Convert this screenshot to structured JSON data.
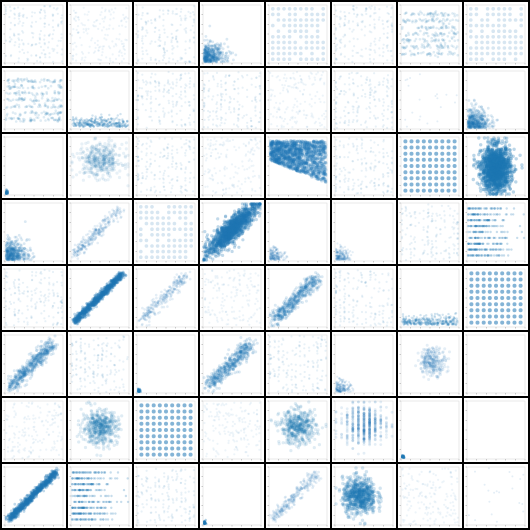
{
  "chart_data": {
    "type": "scatter",
    "layout": "scatter-matrix",
    "rows": 8,
    "cols": 8,
    "title": "",
    "xlabel": "",
    "ylabel": "",
    "grid": false,
    "legend": "none",
    "colors": {
      "point": "#1f77b4",
      "background": "#ffffff",
      "border": "#000000"
    },
    "axis_range": [
      0,
      1
    ],
    "panels": [
      [
        "faint-vertical",
        "faint-uniform",
        "faint-vertical",
        "corner-blob",
        "dot-grid",
        "faint-vertical",
        "horizontal-bands",
        "dot-grid"
      ],
      [
        "horizontal-bands",
        "bottom-band",
        "faint-vertical",
        "faint-vertical",
        "faint-uniform",
        "faint-vertical",
        "sparse",
        "corner-blob"
      ],
      [
        "corner-point",
        "mid-cloud",
        "faint-vertical",
        "faint-uniform",
        "dense-wedge",
        "faint-vertical",
        "dot-grid-strong",
        "dense-ellipse"
      ],
      [
        "corner-blob",
        "diagonal-faint",
        "dot-grid",
        "dense-diagonal",
        "corner-faint",
        "corner-faint",
        "faint-vertical",
        "horizontal-lines"
      ],
      [
        "faint-vertical",
        "dense-diagonal-thin",
        "diagonal-faint",
        "faint-uniform",
        "diagonal-medium",
        "faint-vertical",
        "bottom-band",
        "dot-grid-strong"
      ],
      [
        "diagonal-medium",
        "faint-vertical",
        "corner-point",
        "diagonal-medium",
        "faint-vertical",
        "corner-faint",
        "central-cloud",
        "empty"
      ],
      [
        "faint-uniform",
        "round-cloud",
        "dot-grid-strong",
        "faint-uniform",
        "round-cloud",
        "grid-cloud",
        "corner-point",
        "empty"
      ],
      [
        "dense-diagonal-thin",
        "horizontal-lines",
        "faint-vertical",
        "corner-point",
        "diagonal-faint",
        "round-cloud-dense",
        "faint-uniform",
        "sparse"
      ]
    ]
  }
}
